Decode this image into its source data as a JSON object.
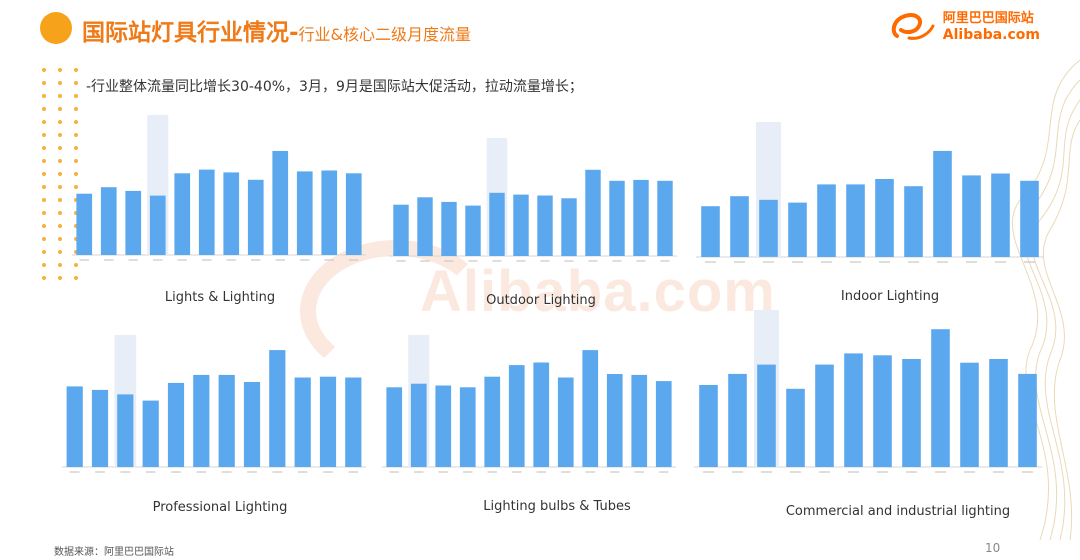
{
  "header": {
    "title_main": "国际站灯具行业情况-",
    "title_sub": "行业&核心二级月度流量",
    "logo_cn": "阿里巴巴国际站",
    "logo_en": "Alibaba.com",
    "watermark": "Alibaba.com"
  },
  "subtitle": "-行业整体流量同比增长30-40%，3月，9月是国际站大促活动，拉动流量增长；",
  "footer": {
    "source": "数据来源：阿里巴巴国际站",
    "page": "10"
  },
  "colors": {
    "bar": "#5ba8ee",
    "highlight": "#e8eef8",
    "accent": "#ef7a18"
  },
  "chart_data": [
    {
      "type": "bar",
      "title": "Lights & Lighting",
      "highlight_index": 3,
      "ylim": [
        0,
        140
      ],
      "values": [
        66,
        73,
        69,
        64,
        88,
        92,
        89,
        81,
        112,
        90,
        91,
        88
      ]
    },
    {
      "type": "bar",
      "title": "Outdoor Lighting",
      "highlight_index": 4,
      "ylim": [
        0,
        120
      ],
      "values": [
        56,
        64,
        59,
        55,
        69,
        67,
        66,
        63,
        94,
        82,
        83,
        82
      ]
    },
    {
      "type": "bar",
      "title": "Indoor Lighting",
      "highlight_index": 2,
      "ylim": [
        0,
        140
      ],
      "values": [
        56,
        67,
        63,
        60,
        80,
        80,
        86,
        78,
        117,
        90,
        92,
        84
      ]
    },
    {
      "type": "bar",
      "title": "Professional Lighting",
      "highlight_index": 2,
      "ylim": [
        0,
        140
      ],
      "values": [
        91,
        87,
        82,
        75,
        95,
        104,
        104,
        96,
        132,
        101,
        102,
        101
      ]
    },
    {
      "type": "bar",
      "title": "Lighting bulbs & Tubes",
      "highlight_index": 1,
      "ylim": [
        0,
        140
      ],
      "values": [
        90,
        94,
        92,
        90,
        102,
        115,
        118,
        101,
        132,
        105,
        104,
        97
      ]
    },
    {
      "type": "bar",
      "title": "Commercial and industrial lighting",
      "highlight_index": 2,
      "ylim": [
        0,
        4
      ],
      "values": [
        2.2,
        2.5,
        2.75,
        2.1,
        2.75,
        3.05,
        3.0,
        2.9,
        3.7,
        2.8,
        2.9,
        2.5
      ]
    }
  ]
}
